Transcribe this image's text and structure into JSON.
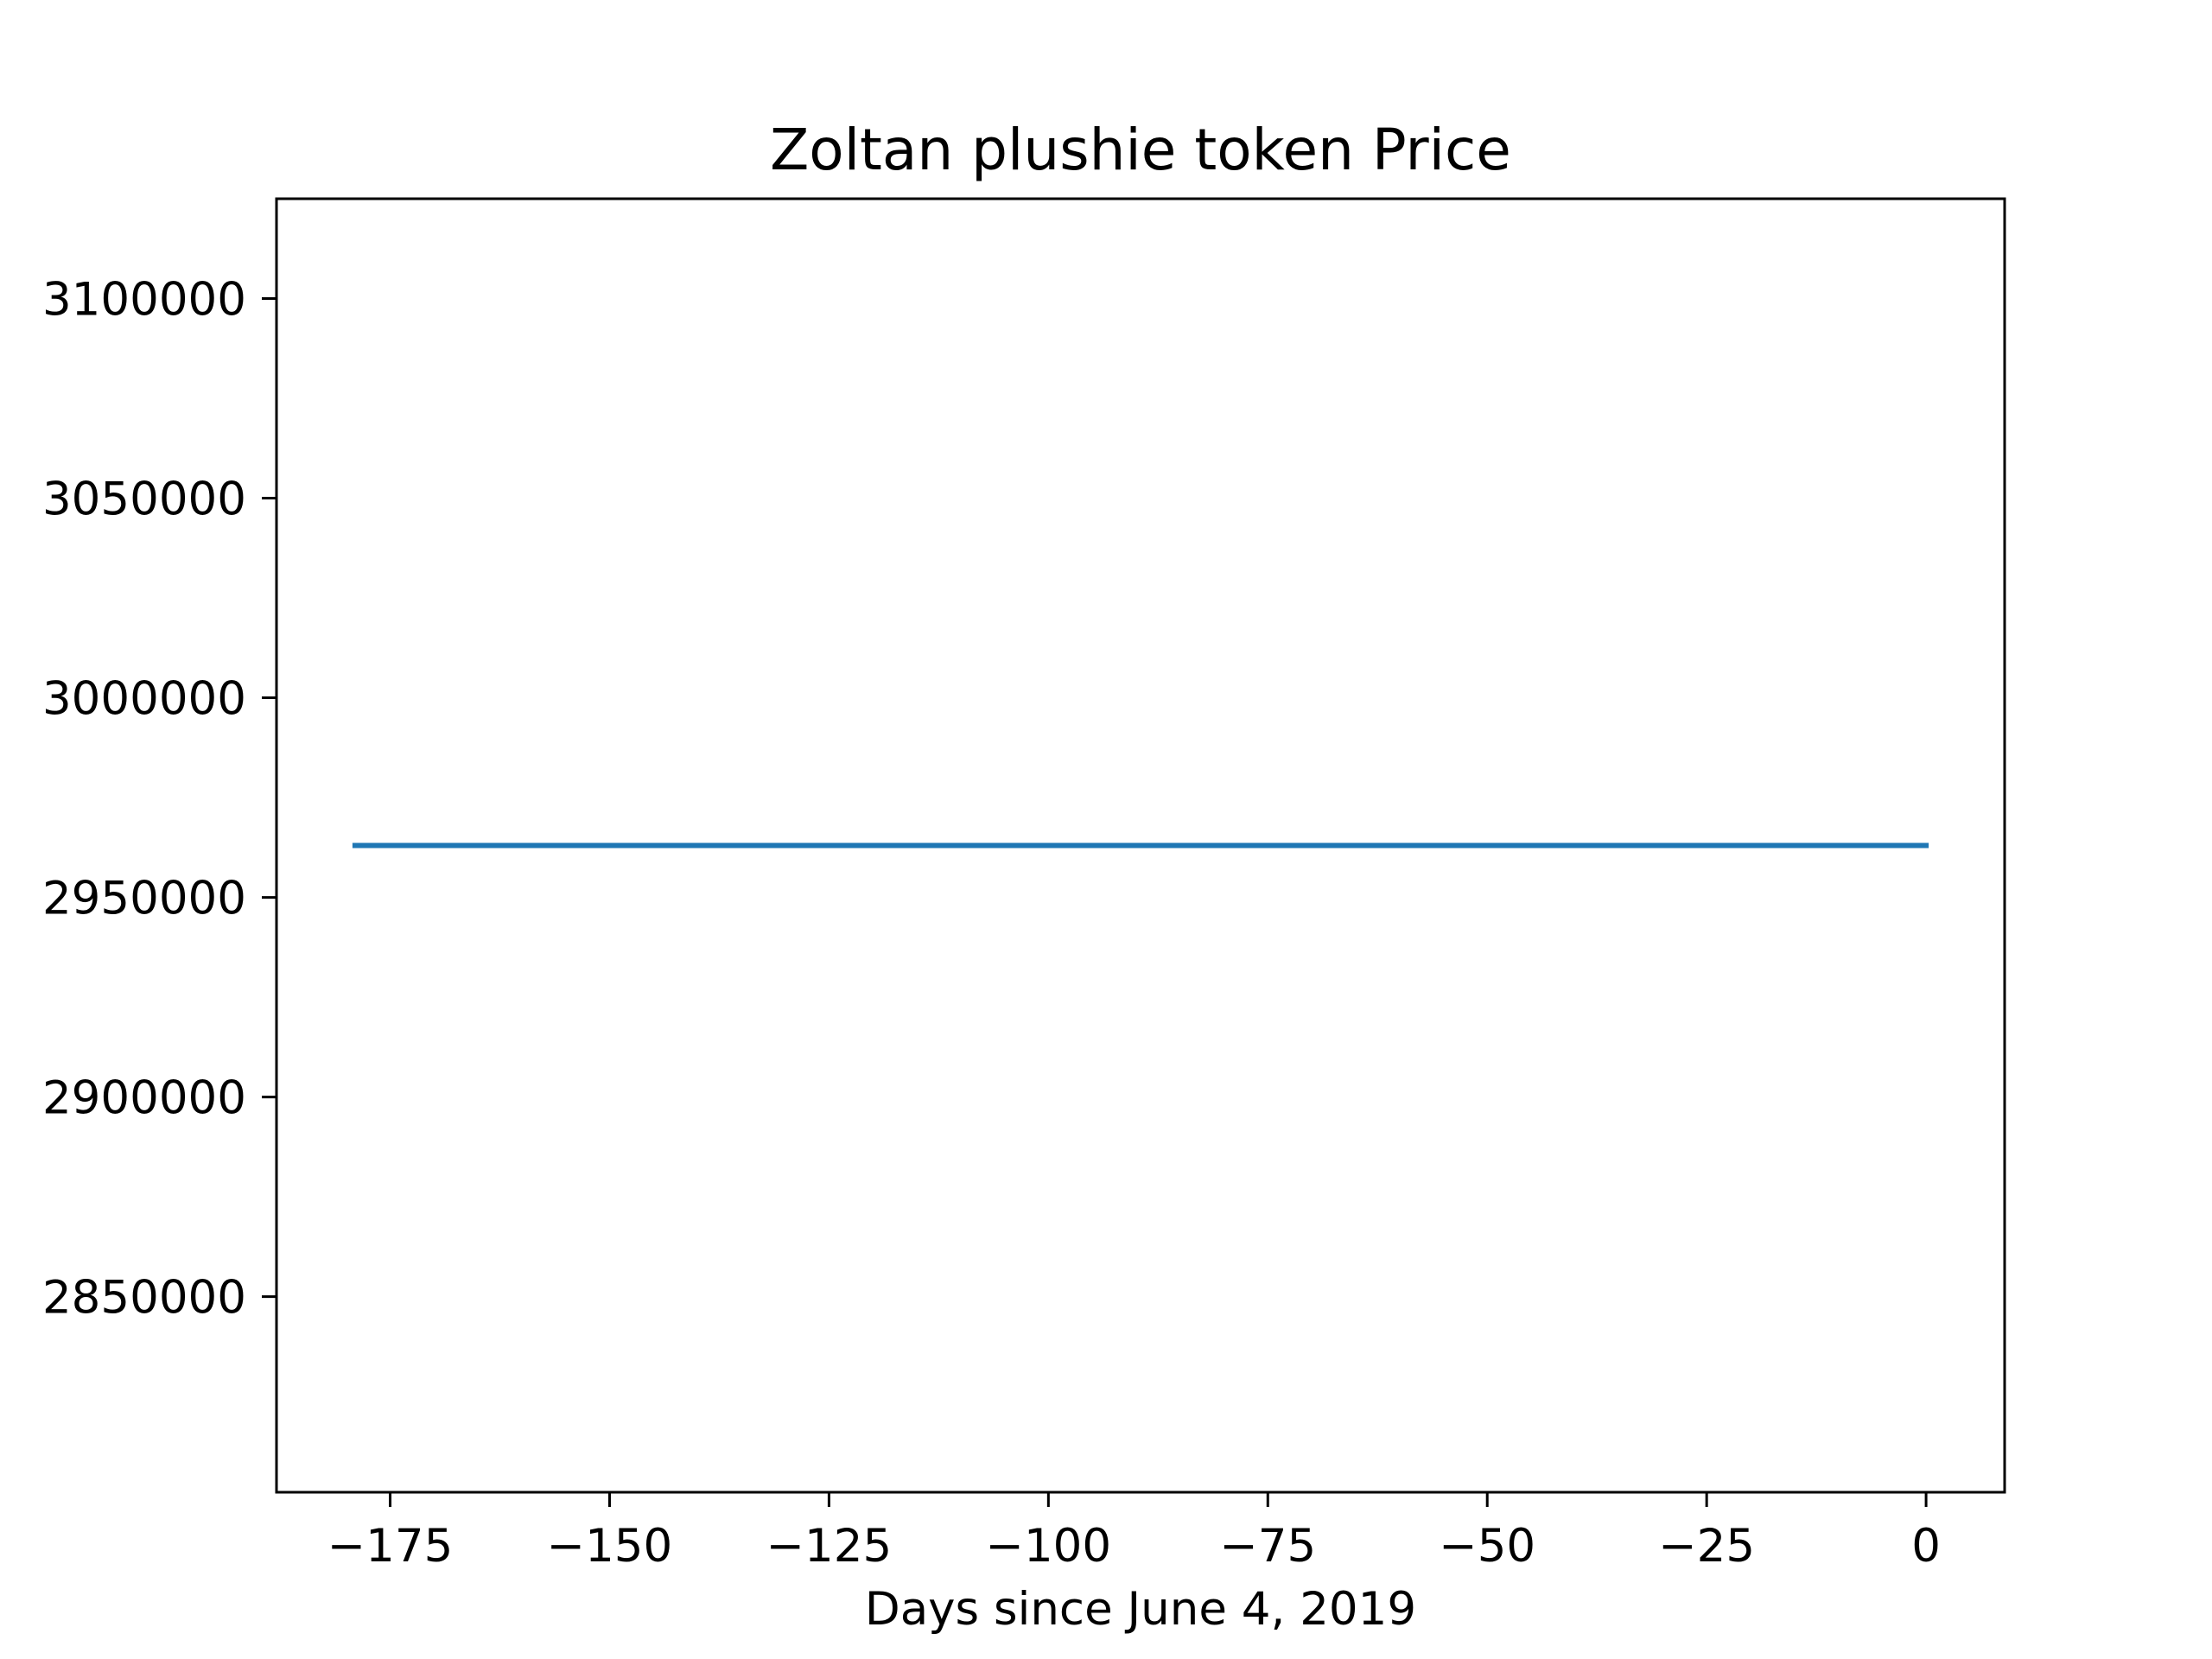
{
  "chart_data": {
    "type": "line",
    "title": "Zoltan plushie token Price",
    "xlabel": "Days since June 4, 2019",
    "ylabel": "",
    "x": [
      -179,
      0
    ],
    "series": [
      {
        "values": [
          2963000,
          2963000
        ]
      }
    ],
    "xlim": [
      -187.95,
      8.95
    ],
    "ylim": [
      2801000,
      3125000
    ],
    "xticks": [
      -175,
      -150,
      -125,
      -100,
      -75,
      -50,
      -25,
      0
    ],
    "xtick_labels": [
      "−175",
      "−150",
      "−125",
      "−100",
      "−75",
      "−50",
      "−25",
      "0"
    ],
    "yticks": [
      2850000,
      2900000,
      2950000,
      3000000,
      3050000,
      3100000
    ],
    "ytick_labels": [
      "2850000",
      "2900000",
      "2950000",
      "3000000",
      "3050000",
      "3100000"
    ],
    "line_color": "#1f77b4",
    "grid": false,
    "legend": false
  }
}
